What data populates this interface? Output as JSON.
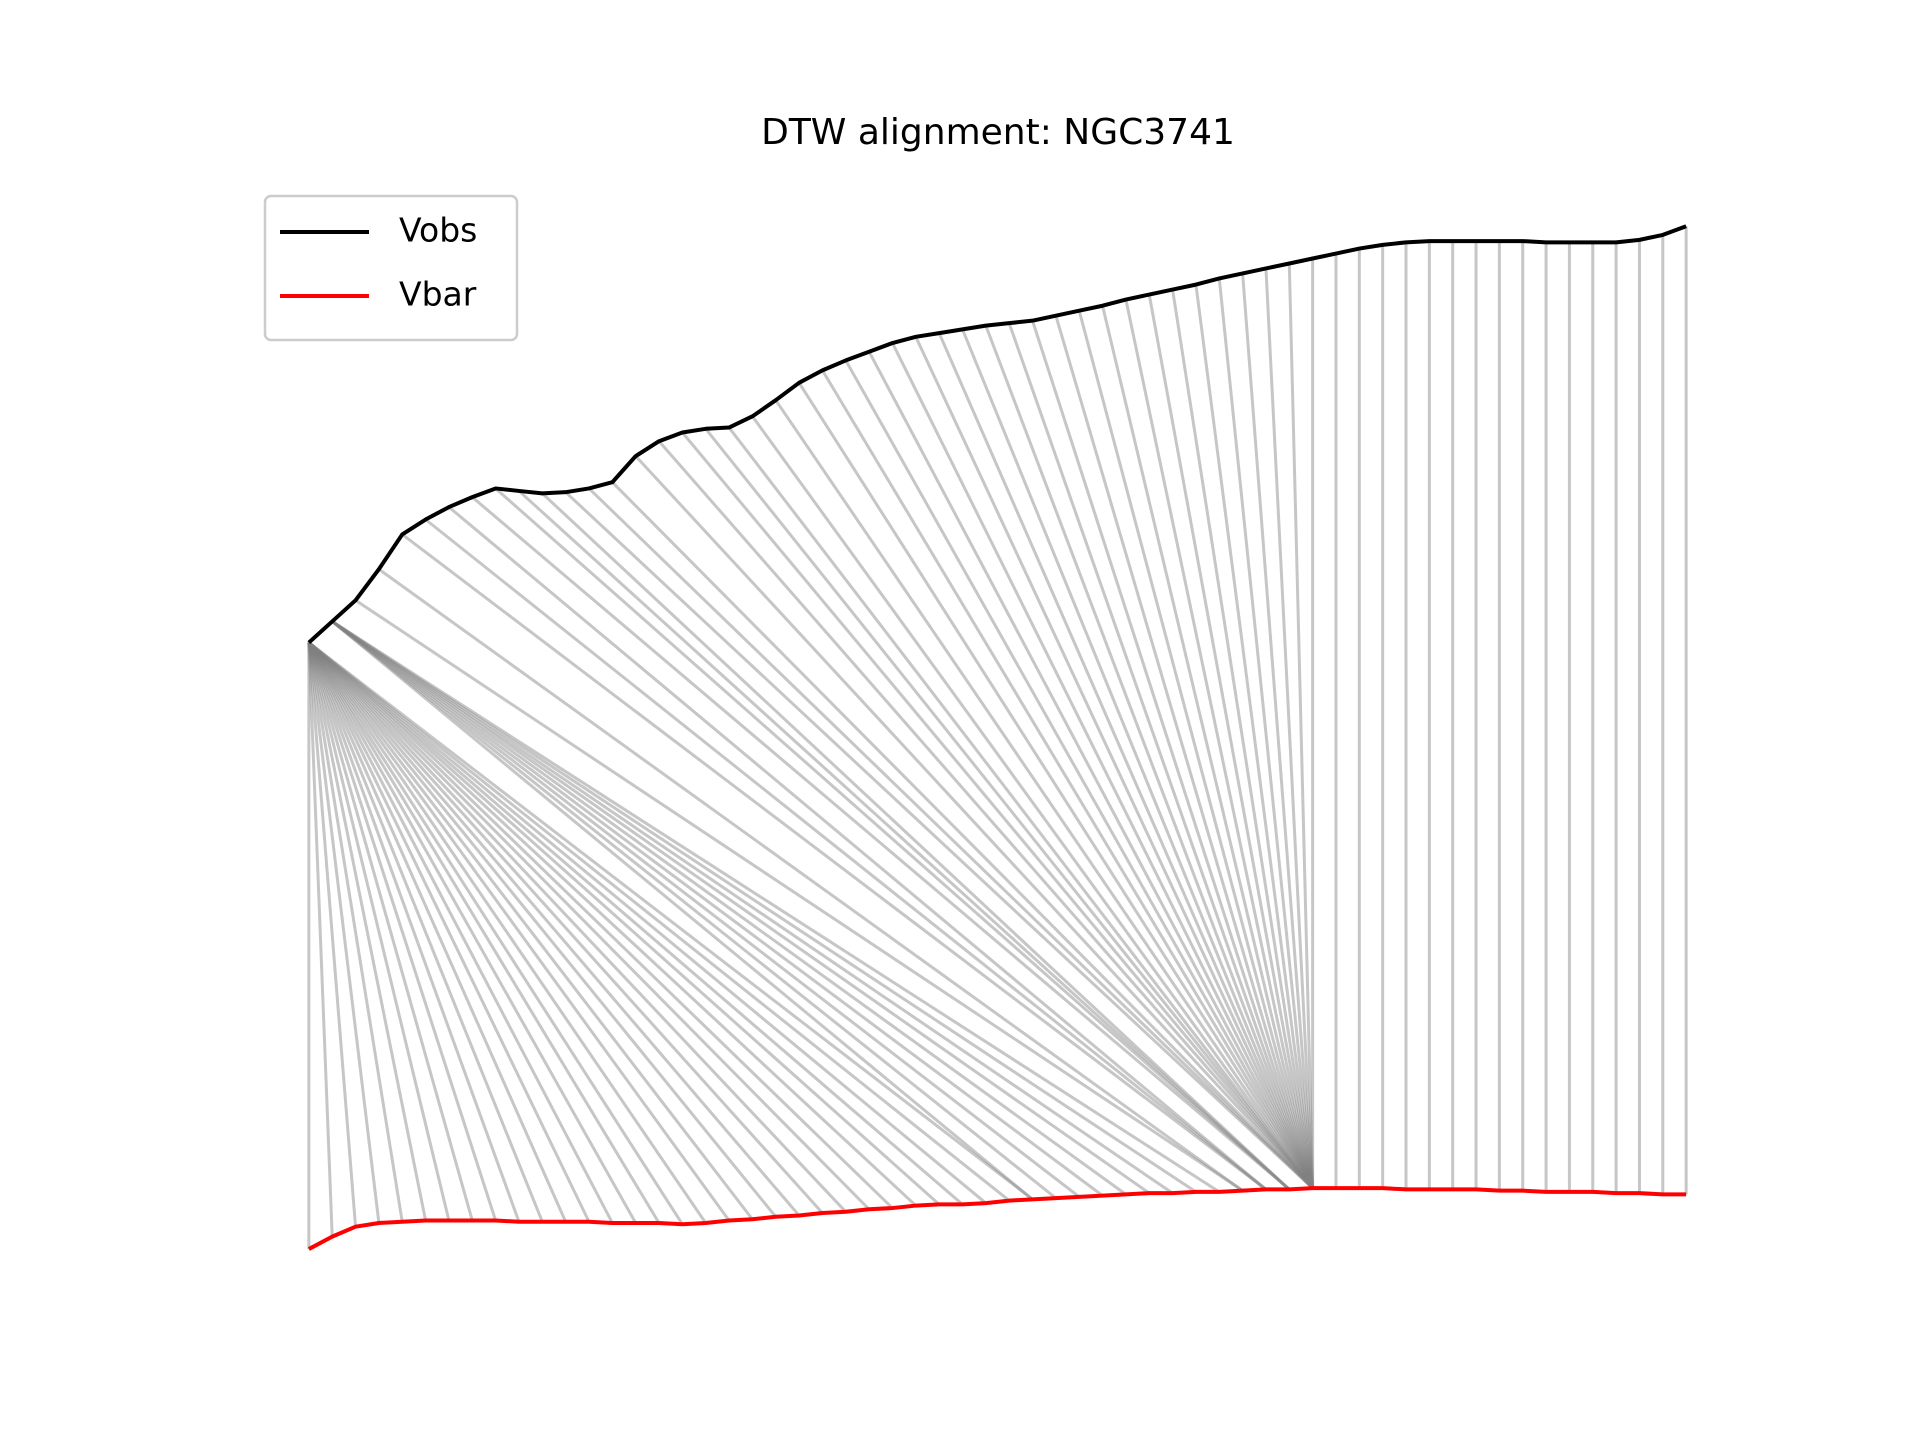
{
  "chart_data": {
    "type": "dtw",
    "title": "DTW alignment: NGC3741",
    "x": [
      0,
      1,
      2,
      3,
      4,
      5,
      6,
      7,
      8,
      9,
      10,
      11,
      12,
      13,
      14,
      15,
      16,
      17,
      18,
      19,
      20,
      21,
      22,
      23,
      24,
      25,
      26,
      27,
      28,
      29,
      30,
      31,
      32,
      33,
      34,
      35,
      36,
      37,
      38,
      39,
      40,
      41,
      42,
      43,
      44,
      45,
      46,
      47,
      48,
      49,
      50,
      51,
      52,
      53,
      54,
      55,
      56,
      57,
      58,
      59
    ],
    "xlim": [
      -2.95,
      61.95
    ],
    "ylim": [
      -0.5,
      8.6
    ],
    "legend": "upper left",
    "alignment_color": "#808080",
    "series": [
      {
        "name": "Vobs",
        "color": "#000000",
        "values": [
          4.83,
          5.0,
          5.17,
          5.42,
          5.7,
          5.82,
          5.92,
          6.0,
          6.07,
          6.05,
          6.03,
          6.04,
          6.07,
          6.12,
          6.33,
          6.45,
          6.52,
          6.55,
          6.56,
          6.65,
          6.78,
          6.92,
          7.02,
          7.1,
          7.17,
          7.24,
          7.29,
          7.32,
          7.35,
          7.38,
          7.4,
          7.42,
          7.46,
          7.5,
          7.54,
          7.59,
          7.63,
          7.67,
          7.71,
          7.76,
          7.8,
          7.84,
          7.88,
          7.92,
          7.96,
          8.0,
          8.03,
          8.05,
          8.06,
          8.06,
          8.06,
          8.06,
          8.06,
          8.05,
          8.05,
          8.05,
          8.05,
          8.07,
          8.11,
          8.18
        ]
      },
      {
        "name": "Vbar",
        "color": "#ff0000",
        "values": [
          -0.05,
          0.05,
          0.13,
          0.16,
          0.17,
          0.18,
          0.18,
          0.18,
          0.18,
          0.17,
          0.17,
          0.17,
          0.17,
          0.16,
          0.16,
          0.16,
          0.15,
          0.16,
          0.18,
          0.19,
          0.21,
          0.22,
          0.24,
          0.25,
          0.27,
          0.28,
          0.3,
          0.31,
          0.31,
          0.32,
          0.34,
          0.35,
          0.36,
          0.37,
          0.38,
          0.39,
          0.4,
          0.4,
          0.41,
          0.41,
          0.42,
          0.43,
          0.43,
          0.44,
          0.44,
          0.44,
          0.44,
          0.43,
          0.43,
          0.43,
          0.43,
          0.42,
          0.42,
          0.41,
          0.41,
          0.41,
          0.4,
          0.4,
          0.39,
          0.39
        ]
      }
    ],
    "alignment": [
      [
        0,
        0
      ],
      [
        0,
        1
      ],
      [
        0,
        2
      ],
      [
        0,
        3
      ],
      [
        0,
        4
      ],
      [
        0,
        5
      ],
      [
        0,
        6
      ],
      [
        0,
        7
      ],
      [
        0,
        8
      ],
      [
        0,
        9
      ],
      [
        0,
        10
      ],
      [
        0,
        11
      ],
      [
        0,
        12
      ],
      [
        0,
        13
      ],
      [
        0,
        14
      ],
      [
        0,
        15
      ],
      [
        0,
        16
      ],
      [
        0,
        17
      ],
      [
        0,
        18
      ],
      [
        0,
        19
      ],
      [
        0,
        20
      ],
      [
        0,
        21
      ],
      [
        0,
        22
      ],
      [
        0,
        23
      ],
      [
        0,
        24
      ],
      [
        0,
        25
      ],
      [
        0,
        26
      ],
      [
        0,
        27
      ],
      [
        0,
        28
      ],
      [
        0,
        29
      ],
      [
        0,
        30
      ],
      [
        0,
        31
      ],
      [
        1,
        31
      ],
      [
        1,
        32
      ],
      [
        1,
        33
      ],
      [
        1,
        34
      ],
      [
        1,
        35
      ],
      [
        1,
        36
      ],
      [
        1,
        37
      ],
      [
        1,
        38
      ],
      [
        1,
        39
      ],
      [
        2,
        40
      ],
      [
        3,
        40
      ],
      [
        4,
        41
      ],
      [
        5,
        41
      ],
      [
        6,
        41
      ],
      [
        7,
        42
      ],
      [
        8,
        42
      ],
      [
        9,
        42
      ],
      [
        10,
        42
      ],
      [
        11,
        43
      ],
      [
        12,
        43
      ],
      [
        13,
        43
      ],
      [
        14,
        43
      ],
      [
        15,
        43
      ],
      [
        16,
        43
      ],
      [
        17,
        43
      ],
      [
        18,
        43
      ],
      [
        19,
        43
      ],
      [
        20,
        43
      ],
      [
        21,
        43
      ],
      [
        22,
        43
      ],
      [
        23,
        43
      ],
      [
        24,
        43
      ],
      [
        25,
        43
      ],
      [
        26,
        43
      ],
      [
        27,
        43
      ],
      [
        28,
        43
      ],
      [
        29,
        43
      ],
      [
        30,
        43
      ],
      [
        31,
        43
      ],
      [
        32,
        43
      ],
      [
        33,
        43
      ],
      [
        34,
        43
      ],
      [
        35,
        43
      ],
      [
        36,
        43
      ],
      [
        37,
        43
      ],
      [
        38,
        43
      ],
      [
        39,
        43
      ],
      [
        40,
        43
      ],
      [
        41,
        43
      ],
      [
        42,
        43
      ],
      [
        43,
        43
      ],
      [
        44,
        44
      ],
      [
        45,
        45
      ],
      [
        46,
        46
      ],
      [
        47,
        47
      ],
      [
        48,
        48
      ],
      [
        49,
        49
      ],
      [
        50,
        50
      ],
      [
        51,
        51
      ],
      [
        52,
        52
      ],
      [
        53,
        53
      ],
      [
        54,
        54
      ],
      [
        55,
        55
      ],
      [
        56,
        56
      ],
      [
        57,
        57
      ],
      [
        58,
        58
      ],
      [
        59,
        59
      ]
    ]
  }
}
